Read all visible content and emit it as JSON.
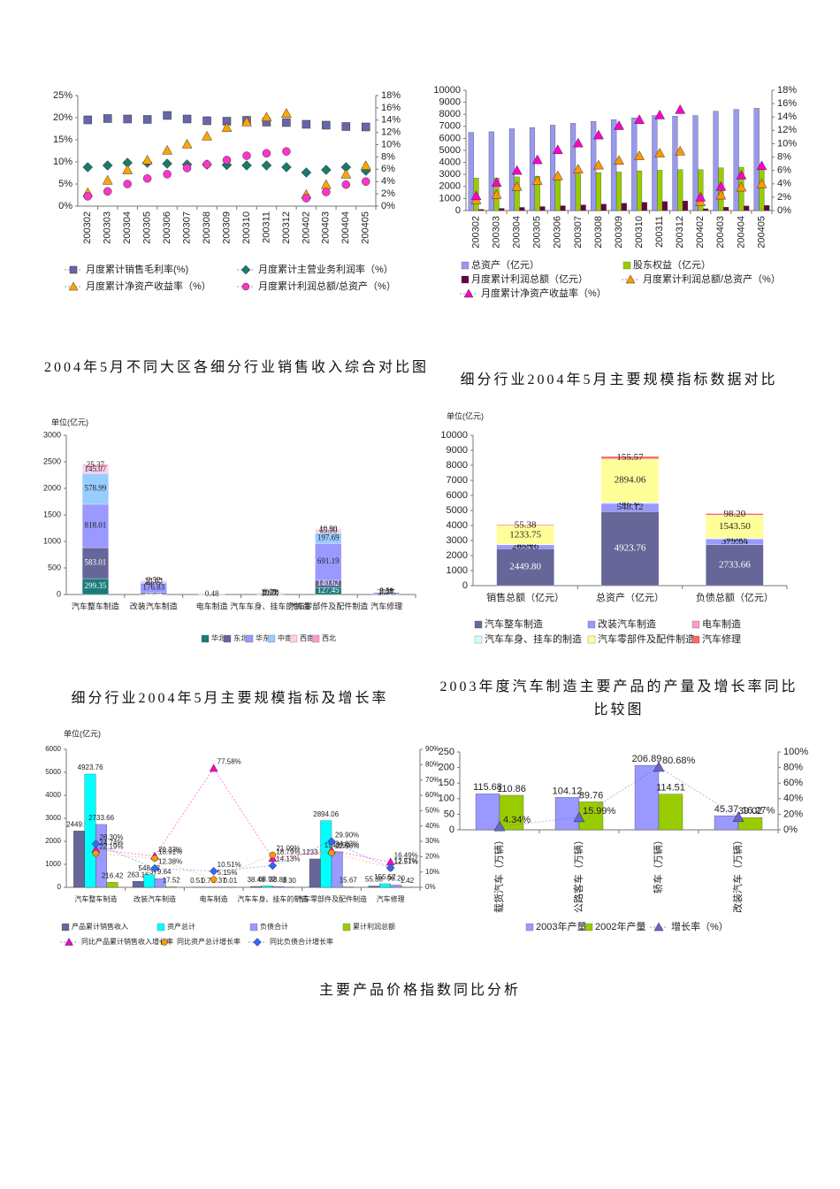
{
  "chart_data": [
    {
      "type": "line",
      "legend": "bottom",
      "grid": false,
      "connect": false,
      "categories": [
        "200302",
        "200303",
        "200304",
        "200305",
        "200306",
        "200307",
        "200308",
        "200309",
        "200310",
        "200311",
        "200312",
        "200402",
        "200403",
        "200404",
        "200405"
      ],
      "ylim": [
        0,
        25
      ],
      "yticks": [
        {
          "value": 0,
          "label": "0%"
        },
        {
          "value": 5,
          "label": "5%"
        },
        {
          "value": 10,
          "label": "10%"
        },
        {
          "value": 15,
          "label": "15%"
        },
        {
          "value": 20,
          "label": "20%"
        },
        {
          "value": 25,
          "label": "25%"
        }
      ],
      "y2lim": [
        0,
        18
      ],
      "y2ticks": [
        {
          "value": 0,
          "label": "0%"
        },
        {
          "value": 2,
          "label": "2%"
        },
        {
          "value": 4,
          "label": "4%"
        },
        {
          "value": 6,
          "label": "6%"
        },
        {
          "value": 8,
          "label": "8%"
        },
        {
          "value": 10,
          "label": "10%"
        },
        {
          "value": 12,
          "label": "12%"
        },
        {
          "value": 14,
          "label": "14%"
        },
        {
          "value": 16,
          "label": "16%"
        },
        {
          "value": 18,
          "label": "18%"
        }
      ],
      "series": [
        {
          "name": "月度累计销售毛利率(%)",
          "color": "#6666aa",
          "marker": "square",
          "values": [
            19.5,
            19.8,
            19.7,
            19.6,
            20.5,
            19.7,
            19.3,
            19.2,
            19.4,
            19.0,
            18.9,
            18.5,
            18.3,
            18.0,
            17.9
          ]
        },
        {
          "name": "月度累计主营业务利润率（%）",
          "color": "#1a7a6a",
          "marker": "diamond",
          "values": [
            8.8,
            9.2,
            9.8,
            9.8,
            9.6,
            9.4,
            9.4,
            9.3,
            9.2,
            9.2,
            8.8,
            7.6,
            8.2,
            8.8,
            8.0
          ]
        },
        {
          "name": "月度累计净资产收益率（%）",
          "color": "#ffa500",
          "marker": "triangle",
          "axis": "y2",
          "values": [
            2.2,
            4.2,
            5.9,
            7.5,
            9.1,
            10.1,
            11.4,
            12.8,
            13.7,
            14.5,
            15.1,
            1.9,
            3.5,
            5.2,
            6.6
          ]
        },
        {
          "name": "月度累计利润总额/总资产（%）",
          "color": "#ff33cc",
          "marker": "circle",
          "axis": "y2",
          "values": [
            1.6,
            2.4,
            3.6,
            4.5,
            5.2,
            6.2,
            6.8,
            7.5,
            8.2,
            8.6,
            8.9,
            1.3,
            2.3,
            3.5,
            4.0
          ]
        }
      ]
    },
    {
      "type": "bar_line",
      "legend": "bottom",
      "grid": false,
      "connect": false,
      "categories": [
        "200302",
        "200303",
        "200304",
        "200305",
        "200306",
        "200307",
        "200308",
        "200309",
        "200310",
        "200311",
        "200312",
        "200402",
        "200403",
        "200404",
        "200405"
      ],
      "ylim": [
        0,
        10000
      ],
      "yticks": [
        0,
        1000,
        2000,
        3000,
        4000,
        5000,
        6000,
        7000,
        8000,
        9000,
        10000
      ],
      "y2lim": [
        0,
        18
      ],
      "y2ticks": [
        {
          "value": 0,
          "label": "0%"
        },
        {
          "value": 2,
          "label": "2%"
        },
        {
          "value": 4,
          "label": "4%"
        },
        {
          "value": 6,
          "label": "6%"
        },
        {
          "value": 8,
          "label": "8%"
        },
        {
          "value": 10,
          "label": "10%"
        },
        {
          "value": 12,
          "label": "12%"
        },
        {
          "value": 14,
          "label": "14%"
        },
        {
          "value": 16,
          "label": "16%"
        },
        {
          "value": 18,
          "label": "18%"
        }
      ],
      "series": [
        {
          "name": "总资产（亿元）",
          "kind": "bar",
          "color": "#9999ee",
          "values": [
            6500,
            6550,
            6800,
            6900,
            7100,
            7250,
            7400,
            7550,
            7700,
            7900,
            7850,
            7900,
            8250,
            8400,
            8500
          ]
        },
        {
          "name": "股东权益（亿元）",
          "kind": "bar",
          "color": "#99cc00",
          "values": [
            2700,
            2700,
            2800,
            2850,
            2950,
            3050,
            3150,
            3200,
            3300,
            3350,
            3400,
            3400,
            3550,
            3600,
            3650
          ]
        },
        {
          "name": "月度累计利润总额（亿元）",
          "kind": "bar",
          "color": "#660044",
          "values": [
            100,
            180,
            260,
            330,
            400,
            470,
            540,
            610,
            680,
            750,
            800,
            150,
            280,
            380,
            430
          ]
        },
        {
          "name": "月度累计利润总额/总资产（%）",
          "kind": "line",
          "marker": "triangle",
          "color": "#ff9900",
          "axis": "y2",
          "values": [
            1.6,
            2.4,
            3.6,
            4.5,
            5.2,
            6.2,
            6.8,
            7.5,
            8.2,
            8.6,
            8.9,
            1.3,
            2.3,
            3.5,
            4.0
          ]
        },
        {
          "name": "月度累计净资产收益率（%）",
          "kind": "line",
          "marker": "triangle",
          "color": "#ff00cc",
          "axis": "y2",
          "values": [
            2.2,
            4.2,
            6.0,
            7.6,
            9.1,
            10.1,
            11.3,
            12.7,
            13.6,
            14.3,
            15.1,
            2.0,
            3.6,
            5.3,
            6.7
          ]
        }
      ]
    },
    {
      "type": "stacked_bar",
      "legend": "bottom",
      "grid": false,
      "title": "2004年5月不同大区各细分行业销售收入综合对比图",
      "unit_label": "单位(亿元)",
      "categories": [
        "汽车整车制造",
        "改装汽车制造",
        "电车制造",
        "汽车车身、挂车的制造",
        "汽车零部件及配件制造",
        "汽车修理"
      ],
      "ylim": [
        0,
        3000
      ],
      "yticks": [
        0,
        500,
        1000,
        1500,
        2000,
        2500,
        3000
      ],
      "series": [
        {
          "name": "华北",
          "color": "#1b7b7b",
          "values": [
            299.35,
            10.69,
            0.03,
            0.64,
            127.45,
            11.68
          ],
          "value_labels": [
            "299.35",
            "10.69",
            "0.03",
            "0.64",
            "127.45",
            "11.68"
          ]
        },
        {
          "name": "东北",
          "color": "#666699",
          "values": [
            583.01,
            26.32,
            null,
            1.91,
            140.62,
            1.66
          ],
          "value_labels": [
            "583.01",
            "26.32",
            null,
            "1.91",
            "140.62",
            "1.66"
          ]
        },
        {
          "name": "华东",
          "color": "#9999ff",
          "values": [
            818.01,
            176.83,
            0.48,
            13.61,
            691.19,
            23.75
          ],
          "value_labels": [
            "818.01",
            "176.83",
            "0.48",
            "13.61",
            "691.19",
            "23.75"
          ]
        },
        {
          "name": "中南",
          "color": "#99ccff",
          "values": [
            578.99,
            18.77,
            null,
            1.59,
            197.69,
            9.1
          ],
          "value_labels": [
            "578.99",
            "18.77",
            null,
            "1.59",
            "197.69",
            "9.10"
          ]
        },
        {
          "name": "西南",
          "color": "#ffd0e8",
          "values": [
            145.07,
            28.03,
            null,
            20.7,
            65.9,
            6.68
          ],
          "value_labels": [
            "145.07",
            "28.03",
            null,
            "20.70",
            "65.90",
            "6.68"
          ]
        },
        {
          "name": "西北",
          "color": "#ff99cc",
          "values": [
            25.37,
            2.52,
            null,
            0.01,
            10.9,
            2.51
          ],
          "value_labels": [
            "25.37",
            "2.52",
            null,
            "0.01",
            "10.90",
            "2.51"
          ]
        }
      ]
    },
    {
      "type": "stacked_bar",
      "legend": "bottom",
      "grid": false,
      "title": "细分行业2004年5月主要规模指标数据对比",
      "unit_label": "单位(亿元)",
      "categories": [
        "销售总额（亿元）",
        "总资产（亿元）",
        "负债总额（亿元）"
      ],
      "ylim": [
        0,
        10000
      ],
      "yticks": [
        0,
        1000,
        2000,
        3000,
        4000,
        5000,
        6000,
        7000,
        8000,
        9000,
        10000
      ],
      "series": [
        {
          "name": "汽车整车制造",
          "color": "#666699",
          "values": [
            2449.8,
            4923.76,
            2733.66
          ],
          "value_labels": [
            "2449.80",
            "4923.76",
            "2733.66"
          ]
        },
        {
          "name": "改装汽车制造",
          "color": "#9999ff",
          "values": [
            263.16,
            548.12,
            379.64
          ],
          "value_labels": [
            "263.16",
            "548.12",
            "379.64"
          ]
        },
        {
          "name": "电车制造",
          "color": "#ff99cc",
          "values": [
            0.51,
            0.76,
            0.37
          ],
          "value_labels": [
            "0.51",
            "0.76",
            "0.37"
          ]
        },
        {
          "name": "汽车车身、挂车的制造",
          "color": "#ccffff",
          "values": [
            38.46,
            68.92,
            38.88
          ],
          "value_labels": [
            "38.46",
            "68.92",
            "38.88"
          ]
        },
        {
          "name": "汽车零部件及配件制造",
          "color": "#ffff99",
          "values": [
            1233.75,
            2894.06,
            1543.5
          ],
          "value_labels": [
            "1233.75",
            "2894.06",
            "1543.50"
          ]
        },
        {
          "name": "汽车修理",
          "color": "#ff6666",
          "values": [
            55.38,
            155.57,
            98.2
          ],
          "value_labels": [
            "55.38",
            "155.57",
            "98.20"
          ]
        }
      ]
    },
    {
      "type": "bar_line",
      "legend": "bottom",
      "grid": false,
      "connect": true,
      "title": "细分行业2004年5月主要规模指标及增长率",
      "unit_label": "单位(亿元)",
      "categories": [
        "汽车整车制造",
        "改装汽车制造",
        "电车制造",
        "汽车车身、挂车的制造",
        "汽车零部件及配件制造",
        "汽车修理"
      ],
      "ylim": [
        0,
        6000
      ],
      "yticks": [
        0,
        1000,
        2000,
        3000,
        4000,
        5000,
        6000
      ],
      "y2lim": [
        0,
        90
      ],
      "y2ticks": [
        {
          "value": 0,
          "label": "0%"
        },
        {
          "value": 10,
          "label": "10%"
        },
        {
          "value": 20,
          "label": "20%"
        },
        {
          "value": 30,
          "label": "30%"
        },
        {
          "value": 40,
          "label": "40%"
        },
        {
          "value": 50,
          "label": "50%"
        },
        {
          "value": 60,
          "label": "60%"
        },
        {
          "value": 70,
          "label": "70%"
        },
        {
          "value": 80,
          "label": "80%"
        },
        {
          "value": 90,
          "label": "90%"
        }
      ],
      "series": [
        {
          "name": "产品累计销售收入",
          "kind": "bar",
          "color": "#666699",
          "values": [
            2449.8,
            263.16,
            0.51,
            38.46,
            1233.75,
            55.38
          ],
          "value_labels": [
            "2449.80",
            "263.16",
            "0.51",
            "38.46",
            "1233.75",
            "55.38"
          ]
        },
        {
          "name": "资产总计",
          "kind": "bar",
          "color": "#00ffff",
          "values": [
            4923.76,
            548.12,
            0.76,
            68.92,
            2894.06,
            155.57
          ],
          "value_labels": [
            "4923.76",
            "548.12",
            "0.76",
            "68.92",
            "2894.06",
            "155.57"
          ]
        },
        {
          "name": "负债合计",
          "kind": "bar",
          "color": "#9999ff",
          "values": [
            2733.66,
            379.64,
            0.37,
            38.88,
            1543.5,
            98.2
          ],
          "value_labels": [
            "2733.66",
            "379.64",
            "0.37",
            "38.88",
            "1543.50",
            "98.20"
          ]
        },
        {
          "name": "累计利润总额",
          "kind": "bar",
          "color": "#99cc00",
          "values": [
            216.42,
            17.52,
            0.01,
            3.3,
            15.67,
            1.42
          ],
          "value_labels": [
            "216.42",
            "17.52",
            "0.01",
            "3.30",
            "15.67",
            "1.42"
          ]
        },
        {
          "name": "同比产品累计销售收入增长率",
          "kind": "line",
          "marker": "triangle",
          "color": "#ff00cc",
          "axis": "y2",
          "values": [
            24.74,
            20.33,
            77.58,
            18.79,
            24.03,
            16.49
          ],
          "value_labels": [
            "24.74%",
            "20.33%",
            "77.58%",
            "18.79%",
            "24.03%",
            "16.49%"
          ]
        },
        {
          "name": "同比资产总计增长率",
          "kind": "line",
          "marker": "circle",
          "color": "#ff9900",
          "axis": "y2",
          "values": [
            22.19,
            18.91,
            5.15,
            21.09,
            22.56,
            12.57
          ],
          "value_labels": [
            "22.19%",
            "18.91%",
            "5.15%",
            "21.09%",
            "22.56%",
            "12.57%"
          ]
        },
        {
          "name": "同比负债合计增长率",
          "kind": "line",
          "marker": "diamond",
          "color": "#3366ff",
          "axis": "y2",
          "values": [
            28.3,
            12.38,
            10.51,
            14.13,
            29.9,
            12.71
          ],
          "value_labels": [
            "28.30%",
            "12.38%",
            "10.51%",
            "14.13%",
            "29.90%",
            "12.71%"
          ]
        }
      ]
    },
    {
      "type": "bar_line",
      "legend": "bottom",
      "grid": false,
      "connect": true,
      "title": "2003年度汽车制造主要产品的产量及增长率同比比较图",
      "categories": [
        "载货汽车（万辆）",
        "公路客车（万辆）",
        "轿车（万辆）",
        "改装汽车（万辆）"
      ],
      "ylim": [
        0,
        250
      ],
      "yticks": [
        0,
        50,
        100,
        150,
        200,
        250
      ],
      "y2lim": [
        0,
        100
      ],
      "y2ticks": [
        {
          "value": 0,
          "label": "0%"
        },
        {
          "value": 20,
          "label": "20%"
        },
        {
          "value": 40,
          "label": "40%"
        },
        {
          "value": 60,
          "label": "60%"
        },
        {
          "value": 80,
          "label": "80%"
        },
        {
          "value": 100,
          "label": "100%"
        }
      ],
      "series": [
        {
          "name": "2003年产量",
          "kind": "bar",
          "color": "#9999ff",
          "values": [
            115.68,
            104.12,
            206.89,
            45.37
          ],
          "value_labels": [
            "115.68",
            "104.12",
            "206.89",
            "45.37"
          ]
        },
        {
          "name": "2002年产量",
          "kind": "bar",
          "color": "#99cc00",
          "values": [
            110.86,
            89.76,
            114.51,
            39.02
          ],
          "value_labels": [
            "110.86",
            "89.76",
            "114.51",
            "39.02"
          ]
        },
        {
          "name": "增长率（%）",
          "kind": "line",
          "marker": "triangle",
          "color": "#6666cc",
          "axis": "y2",
          "values": [
            4.34,
            15.99,
            80.68,
            16.27
          ],
          "value_labels": [
            "4.34%",
            "15.99%",
            "80.68%",
            "16.27%"
          ]
        }
      ]
    }
  ],
  "section_heading": "主要产品价格指数同比分析"
}
